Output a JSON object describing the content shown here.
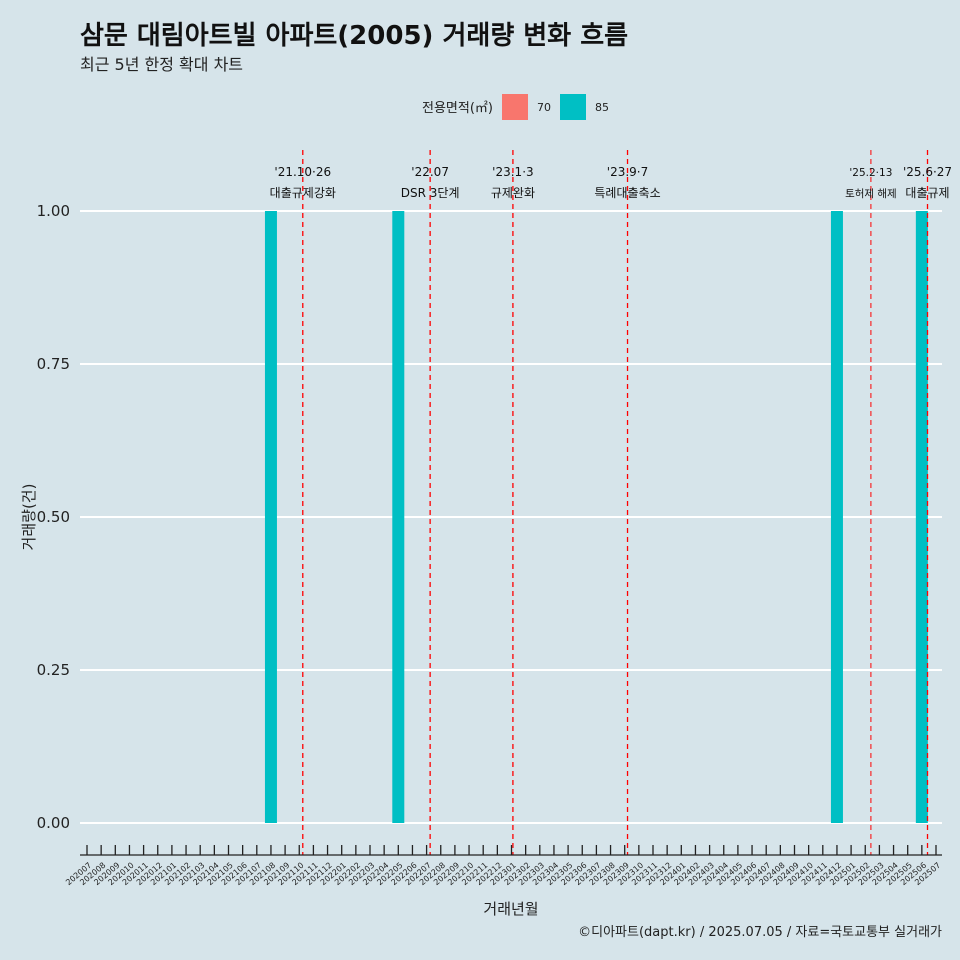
{
  "chart_data": {
    "type": "bar",
    "title": "삼문 대림아트빌 아파트(2005) 거래량 변화 흐름",
    "subtitle": "최근 5년 한정 확대 차트",
    "xlabel": "거래년월",
    "ylabel": "거래량(건)",
    "ylim": [
      0,
      1
    ],
    "yticks": [
      "0.00",
      "0.25",
      "0.50",
      "0.75",
      "1.00"
    ],
    "grid": "horizontal",
    "legend": {
      "title": "전용면적(㎡)",
      "placement": "top",
      "entries": [
        {
          "label": "70",
          "color": "#f8766d"
        },
        {
          "label": "85",
          "color": "#00bfc4"
        }
      ]
    },
    "categories": [
      "202007",
      "202008",
      "202009",
      "202010",
      "202011",
      "202012",
      "202101",
      "202102",
      "202103",
      "202104",
      "202105",
      "202106",
      "202107",
      "202108",
      "202109",
      "202110",
      "202111",
      "202112",
      "202201",
      "202202",
      "202203",
      "202204",
      "202205",
      "202206",
      "202207",
      "202208",
      "202209",
      "202210",
      "202211",
      "202212",
      "202301",
      "202302",
      "202303",
      "202304",
      "202305",
      "202306",
      "202307",
      "202308",
      "202309",
      "202310",
      "202311",
      "202312",
      "202401",
      "202402",
      "202403",
      "202404",
      "202405",
      "202406",
      "202407",
      "202408",
      "202409",
      "202410",
      "202411",
      "202412",
      "202501",
      "202502",
      "202503",
      "202504",
      "202505",
      "202506",
      "202507"
    ],
    "series": [
      {
        "name": "70",
        "color": "#f8766d",
        "points": []
      },
      {
        "name": "85",
        "color": "#00bfc4",
        "points": [
          {
            "x": "202108",
            "y": 1
          },
          {
            "x": "202205",
            "y": 1
          },
          {
            "x": "202412",
            "y": 1
          },
          {
            "x": "202506",
            "y": 1
          }
        ]
      }
    ],
    "annotations": [
      {
        "x": 15.25,
        "line1": "'21.10·26",
        "line2": "대출규제강화",
        "size": "normal"
      },
      {
        "x": 24.25,
        "line1": "'22.07",
        "line2": "DSR 3단계",
        "size": "normal"
      },
      {
        "x": 30.1,
        "line1": "'23.1·3",
        "line2": "규제완화",
        "size": "normal"
      },
      {
        "x": 38.2,
        "line1": "'23.9·7",
        "line2": "특례대출축소",
        "size": "normal"
      },
      {
        "x": 55.4,
        "line1": "'25.2·13",
        "line2": "토허제 해제",
        "size": "small"
      },
      {
        "x": 59.4,
        "line1": "'25.6·27",
        "line2": "대출규제",
        "size": "normal"
      }
    ],
    "caption": "©디아파트(dapt.kr) / 2025.07.05 / 자료=국토교통부 실거래가"
  }
}
